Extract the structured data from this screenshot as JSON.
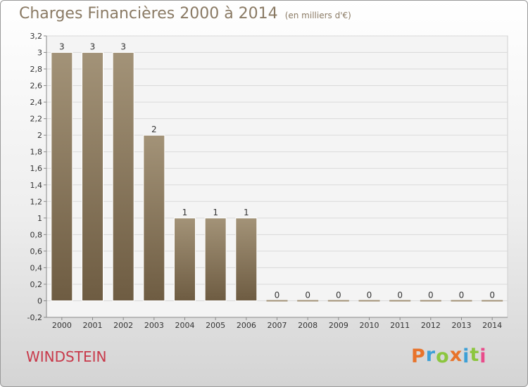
{
  "header": {
    "title": "Charges Financières 2000 à 2014",
    "unit": "(en milliers d'€)"
  },
  "footer": {
    "commune": "WINDSTEIN",
    "logo_text": "Proxiti",
    "logo_colors": [
      "#e8732a",
      "#3ea0d6",
      "#8cc63f",
      "#e8732a",
      "#3ea0d6",
      "#8cc63f",
      "#e94c8b"
    ]
  },
  "colors": {
    "bar_top": "#a39378",
    "bar_bottom": "#6e5c42",
    "bar_edge": "#ffffff",
    "grid": "#d9d9d9",
    "axis_text": "#333333",
    "title": "#8a7a64",
    "commune": "#c8394a"
  },
  "chart_data": {
    "type": "bar",
    "categories": [
      "2000",
      "2001",
      "2002",
      "2003",
      "2004",
      "2005",
      "2006",
      "2007",
      "2008",
      "2009",
      "2010",
      "2011",
      "2012",
      "2013",
      "2014"
    ],
    "values": [
      3,
      3,
      3,
      2,
      1,
      1,
      1,
      0,
      0,
      0,
      0,
      0,
      0,
      0,
      0
    ],
    "data_labels": [
      "3",
      "3",
      "3",
      "2",
      "1",
      "1",
      "1",
      "0",
      "0",
      "0",
      "0",
      "0",
      "0",
      "0",
      "0"
    ],
    "yticks": [
      "-0,2",
      "0",
      "0,2",
      "0,4",
      "0,6",
      "0,8",
      "1",
      "1,2",
      "1,4",
      "1,6",
      "1,8",
      "2",
      "2,2",
      "2,4",
      "2,6",
      "2,8",
      "3",
      "3,2"
    ],
    "ytick_values": [
      -0.2,
      0,
      0.2,
      0.4,
      0.6,
      0.8,
      1,
      1.2,
      1.4,
      1.6,
      1.8,
      2,
      2.2,
      2.4,
      2.6,
      2.8,
      3,
      3.2
    ],
    "ylim": [
      -0.2,
      3.2
    ],
    "grid": true,
    "legend": "none"
  }
}
